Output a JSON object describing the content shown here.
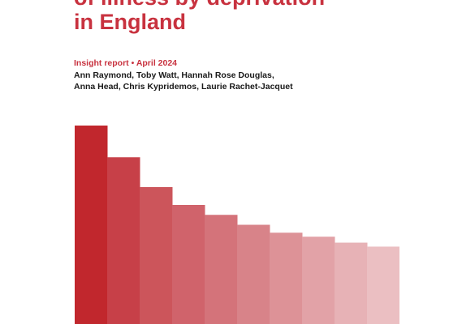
{
  "cover": {
    "title_lines": [
      "of illness by deprivation",
      "in England"
    ],
    "report_type": "Insight report",
    "separator": "•",
    "date": "April 2024",
    "author_lines": [
      "Ann Raymond, Toby Watt, Hannah Rose Douglas,",
      "Anna Head, Chris Kypridemos, Laurie Rachet-Jacquet"
    ],
    "accent_color": "#c8323f",
    "text_color": "#1a1a1a"
  },
  "decorative_bars": {
    "count": 10,
    "relative_heights": [
      1.0,
      0.84,
      0.69,
      0.6,
      0.55,
      0.5,
      0.46,
      0.44,
      0.41,
      0.39
    ],
    "colors": [
      "#c1272d",
      "#c74048",
      "#cc555b",
      "#d0636b",
      "#d4737a",
      "#d88389",
      "#dd9297",
      "#e2a2a7",
      "#e7b2b6",
      "#ebbfc2"
    ]
  }
}
